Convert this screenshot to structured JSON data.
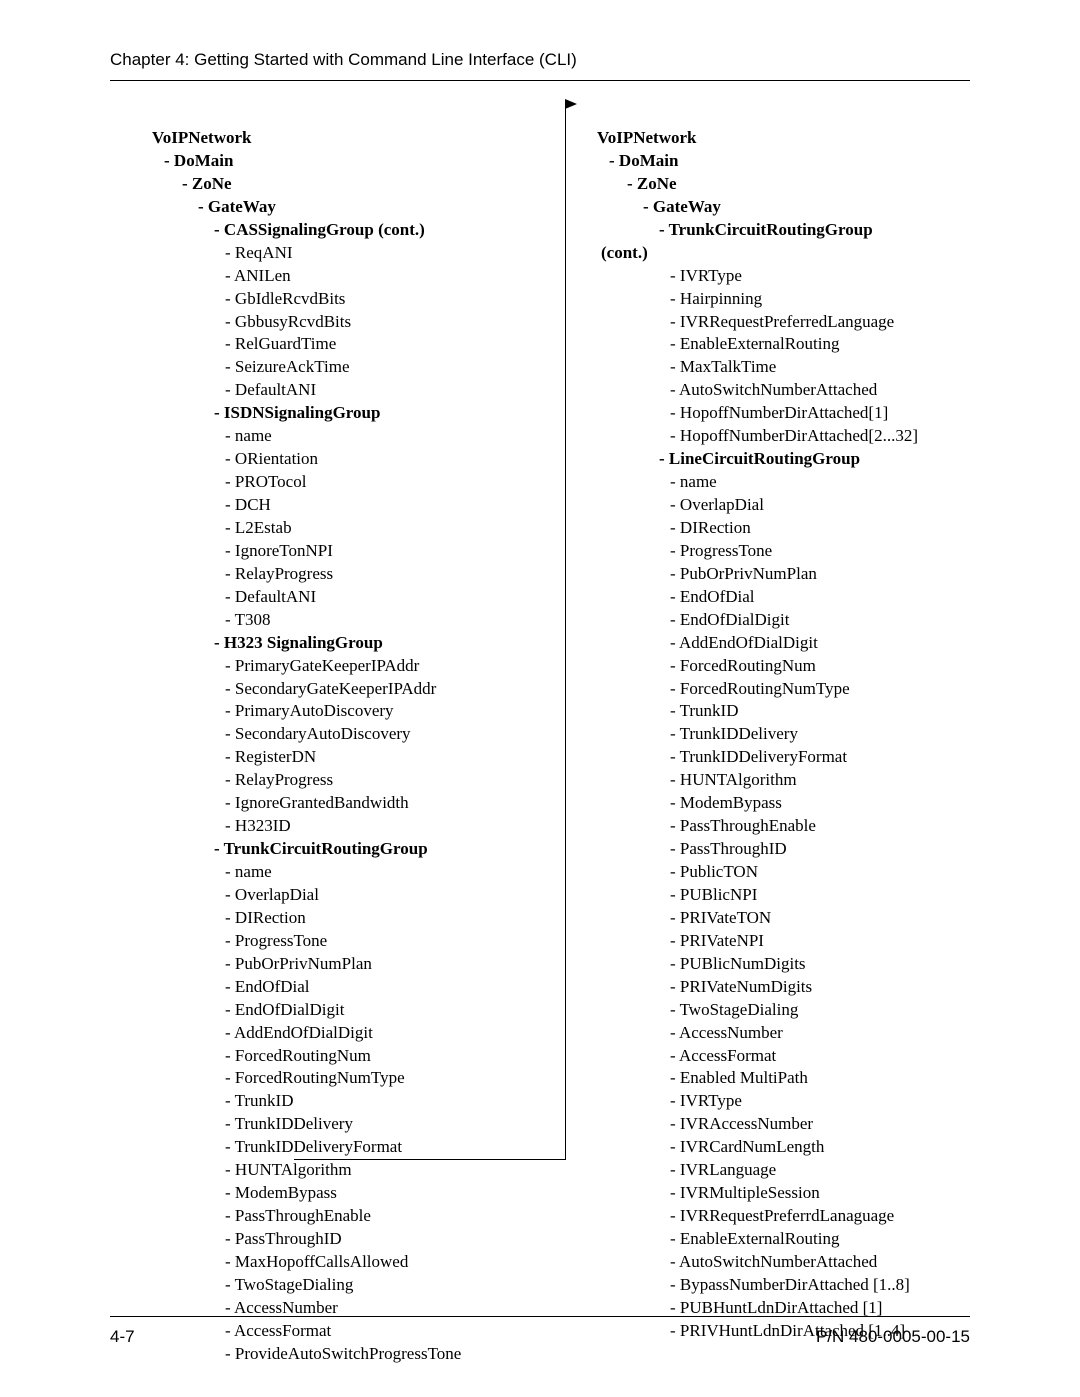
{
  "header": "Chapter 4: Getting Started with Command Line Interface (CLI)",
  "footer_left": "4-7",
  "footer_right": "P/N 480-0005-00-15",
  "left_col": [
    {
      "lvl": 0,
      "bold": true,
      "text": "VoIPNetwork"
    },
    {
      "lvl": 1,
      "bold": true,
      "text": "- DoMain"
    },
    {
      "lvl": 2,
      "bold": true,
      "text": "- ZoNe"
    },
    {
      "lvl": 3,
      "bold": true,
      "text": "- GateWay"
    },
    {
      "lvl": 4,
      "bold": true,
      "text": "- CASSignalingGroup (cont.)"
    },
    {
      "lvl": 5,
      "bold": false,
      "text": "- ReqANI"
    },
    {
      "lvl": 5,
      "bold": false,
      "text": "- ANILen"
    },
    {
      "lvl": 5,
      "bold": false,
      "text": "- GbIdleRcvdBits"
    },
    {
      "lvl": 5,
      "bold": false,
      "text": "- GbbusyRcvdBits"
    },
    {
      "lvl": 5,
      "bold": false,
      "text": "- RelGuardTime"
    },
    {
      "lvl": 5,
      "bold": false,
      "text": "- SeizureAckTime"
    },
    {
      "lvl": 5,
      "bold": false,
      "text": "- DefaultANI"
    },
    {
      "lvl": 4,
      "bold": true,
      "text": "- ISDNSignalingGroup"
    },
    {
      "lvl": 5,
      "bold": false,
      "text": "- name"
    },
    {
      "lvl": 5,
      "bold": false,
      "text": "- ORientation"
    },
    {
      "lvl": 5,
      "bold": false,
      "text": "- PROTocol"
    },
    {
      "lvl": 5,
      "bold": false,
      "text": "- DCH"
    },
    {
      "lvl": 5,
      "bold": false,
      "text": "- L2Estab"
    },
    {
      "lvl": 5,
      "bold": false,
      "text": "- IgnoreTonNPI"
    },
    {
      "lvl": 5,
      "bold": false,
      "text": "- RelayProgress"
    },
    {
      "lvl": 5,
      "bold": false,
      "text": "- DefaultANI"
    },
    {
      "lvl": 5,
      "bold": false,
      "text": "- T308"
    },
    {
      "lvl": 4,
      "bold": true,
      "text": "- H323 SignalingGroup"
    },
    {
      "lvl": 5,
      "bold": false,
      "text": "- PrimaryGateKeeperIPAddr"
    },
    {
      "lvl": 5,
      "bold": false,
      "text": "- SecondaryGateKeeperIPAddr"
    },
    {
      "lvl": 5,
      "bold": false,
      "text": "- PrimaryAutoDiscovery"
    },
    {
      "lvl": 5,
      "bold": false,
      "text": "- SecondaryAutoDiscovery"
    },
    {
      "lvl": 5,
      "bold": false,
      "text": "- RegisterDN"
    },
    {
      "lvl": 5,
      "bold": false,
      "text": "- RelayProgress"
    },
    {
      "lvl": 5,
      "bold": false,
      "text": "- IgnoreGrantedBandwidth"
    },
    {
      "lvl": 5,
      "bold": false,
      "text": "- H323ID"
    },
    {
      "lvl": 4,
      "bold": true,
      "text": "- TrunkCircuitRoutingGroup"
    },
    {
      "lvl": 5,
      "bold": false,
      "text": "- name"
    },
    {
      "lvl": 5,
      "bold": false,
      "text": "- OverlapDial"
    },
    {
      "lvl": 5,
      "bold": false,
      "text": "- DIRection"
    },
    {
      "lvl": 5,
      "bold": false,
      "text": "- ProgressTone"
    },
    {
      "lvl": 5,
      "bold": false,
      "text": "- PubOrPrivNumPlan"
    },
    {
      "lvl": 5,
      "bold": false,
      "text": "- EndOfDial"
    },
    {
      "lvl": 5,
      "bold": false,
      "text": "- EndOfDialDigit"
    },
    {
      "lvl": 5,
      "bold": false,
      "text": "- AddEndOfDialDigit"
    },
    {
      "lvl": 5,
      "bold": false,
      "text": "- ForcedRoutingNum"
    },
    {
      "lvl": 5,
      "bold": false,
      "text": "- ForcedRoutingNumType"
    },
    {
      "lvl": 5,
      "bold": false,
      "text": "- TrunkID"
    },
    {
      "lvl": 5,
      "bold": false,
      "text": "- TrunkIDDelivery"
    },
    {
      "lvl": 5,
      "bold": false,
      "text": "- TrunkIDDeliveryFormat"
    },
    {
      "lvl": 5,
      "bold": false,
      "text": "- HUNTAlgorithm"
    },
    {
      "lvl": 5,
      "bold": false,
      "text": "- ModemBypass"
    },
    {
      "lvl": 5,
      "bold": false,
      "text": "- PassThroughEnable"
    },
    {
      "lvl": 5,
      "bold": false,
      "text": "- PassThroughID"
    },
    {
      "lvl": 5,
      "bold": false,
      "text": "- MaxHopoffCallsAllowed"
    },
    {
      "lvl": 5,
      "bold": false,
      "text": "- TwoStageDialing"
    },
    {
      "lvl": 5,
      "bold": false,
      "text": "- AccessNumber"
    },
    {
      "lvl": 5,
      "bold": false,
      "text": "- AccessFormat"
    },
    {
      "lvl": 5,
      "bold": false,
      "text": "- ProvideAutoSwitchProgressTone"
    }
  ],
  "right_col": [
    {
      "lvl": 0,
      "bold": true,
      "text": "VoIPNetwork"
    },
    {
      "lvl": 1,
      "bold": true,
      "text": "- DoMain"
    },
    {
      "lvl": 2,
      "bold": true,
      "text": "- ZoNe"
    },
    {
      "lvl": 3,
      "bold": true,
      "text": "- GateWay"
    },
    {
      "lvl": 4,
      "bold": true,
      "text": "- TrunkCircuitRoutingGroup"
    },
    {
      "lvl": "cont",
      "bold": true,
      "text": "(cont.)"
    },
    {
      "lvl": 5,
      "bold": false,
      "text": "- IVRType"
    },
    {
      "lvl": 5,
      "bold": false,
      "text": "- Hairpinning"
    },
    {
      "lvl": 5,
      "bold": false,
      "text": "- IVRRequestPreferredLanguage"
    },
    {
      "lvl": 5,
      "bold": false,
      "text": "- EnableExternalRouting"
    },
    {
      "lvl": 5,
      "bold": false,
      "text": "- MaxTalkTime"
    },
    {
      "lvl": 5,
      "bold": false,
      "text": "- AutoSwitchNumberAttached"
    },
    {
      "lvl": 5,
      "bold": false,
      "text": "- HopoffNumberDirAttached[1]"
    },
    {
      "lvl": 5,
      "bold": false,
      "text": "- HopoffNumberDirAttached[2...32]"
    },
    {
      "lvl": 4,
      "bold": true,
      "text": "- LineCircuitRoutingGroup"
    },
    {
      "lvl": 5,
      "bold": false,
      "text": "- name"
    },
    {
      "lvl": 5,
      "bold": false,
      "text": "- OverlapDial"
    },
    {
      "lvl": 5,
      "bold": false,
      "text": "- DIRection"
    },
    {
      "lvl": 5,
      "bold": false,
      "text": "- ProgressTone"
    },
    {
      "lvl": 5,
      "bold": false,
      "text": "- PubOrPrivNumPlan"
    },
    {
      "lvl": 5,
      "bold": false,
      "text": "- EndOfDial"
    },
    {
      "lvl": 5,
      "bold": false,
      "text": "- EndOfDialDigit"
    },
    {
      "lvl": 5,
      "bold": false,
      "text": "- AddEndOfDialDigit"
    },
    {
      "lvl": 5,
      "bold": false,
      "text": "- ForcedRoutingNum"
    },
    {
      "lvl": 5,
      "bold": false,
      "text": "- ForcedRoutingNumType"
    },
    {
      "lvl": 5,
      "bold": false,
      "text": "- TrunkID"
    },
    {
      "lvl": 5,
      "bold": false,
      "text": "- TrunkIDDelivery"
    },
    {
      "lvl": 5,
      "bold": false,
      "text": "- TrunkIDDeliveryFormat"
    },
    {
      "lvl": 5,
      "bold": false,
      "text": "- HUNTAlgorithm"
    },
    {
      "lvl": 5,
      "bold": false,
      "text": "- ModemBypass"
    },
    {
      "lvl": 5,
      "bold": false,
      "text": "- PassThroughEnable"
    },
    {
      "lvl": 5,
      "bold": false,
      "text": "- PassThroughID"
    },
    {
      "lvl": 5,
      "bold": false,
      "text": "- PublicTON"
    },
    {
      "lvl": 5,
      "bold": false,
      "text": "- PUBlicNPI"
    },
    {
      "lvl": 5,
      "bold": false,
      "text": "- PRIVateTON"
    },
    {
      "lvl": 5,
      "bold": false,
      "text": "- PRIVateNPI"
    },
    {
      "lvl": 5,
      "bold": false,
      "text": "- PUBlicNumDigits"
    },
    {
      "lvl": 5,
      "bold": false,
      "text": "- PRIVateNumDigits"
    },
    {
      "lvl": 5,
      "bold": false,
      "text": "- TwoStageDialing"
    },
    {
      "lvl": 5,
      "bold": false,
      "text": "- AccessNumber"
    },
    {
      "lvl": 5,
      "bold": false,
      "text": "- AccessFormat"
    },
    {
      "lvl": 5,
      "bold": false,
      "text": "- Enabled MultiPath"
    },
    {
      "lvl": 5,
      "bold": false,
      "text": "- IVRType"
    },
    {
      "lvl": 5,
      "bold": false,
      "text": "- IVRAccessNumber"
    },
    {
      "lvl": 5,
      "bold": false,
      "text": "- IVRCardNumLength"
    },
    {
      "lvl": 5,
      "bold": false,
      "text": "- IVRLanguage"
    },
    {
      "lvl": 5,
      "bold": false,
      "text": "- IVRMultipleSession"
    },
    {
      "lvl": 5,
      "bold": false,
      "text": "- IVRRequestPreferrdLanaguage"
    },
    {
      "lvl": 5,
      "bold": false,
      "text": "- EnableExternalRouting"
    },
    {
      "lvl": 5,
      "bold": false,
      "text": "- AutoSwitchNumberAttached"
    },
    {
      "lvl": 5,
      "bold": false,
      "text": "- BypassNumberDirAttached [1..8]"
    },
    {
      "lvl": 5,
      "bold": false,
      "text": "- PUBHuntLdnDirAttached [1]"
    },
    {
      "lvl": 5,
      "bold": false,
      "text": "- PRIVHuntLdnDirAttached [1..4]"
    }
  ]
}
